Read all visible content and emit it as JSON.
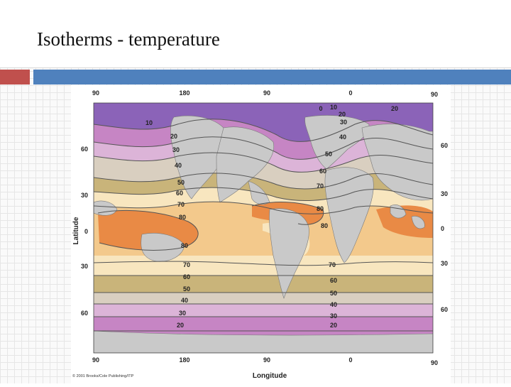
{
  "slide": {
    "title": "Isotherms - temperature"
  },
  "map": {
    "top_ticks": [
      "90",
      "180",
      "90",
      "0",
      "90"
    ],
    "bottom_ticks": [
      "90",
      "180",
      "90",
      "0",
      "90"
    ],
    "left_ticks": [
      "60",
      "30",
      "0",
      "30",
      "60"
    ],
    "right_ticks": [
      "60",
      "30",
      "0",
      "30",
      "60"
    ],
    "x_axis_label": "Longitude",
    "y_axis_label": "Latitude",
    "copyright": "© 2001 Brooks/Cole Publishing/ITP",
    "isotherm_labels": {
      "n10": "10",
      "n20a": "20",
      "n30a": "30",
      "n40a": "40",
      "n50a": "50",
      "n60a": "60",
      "n70a": "70",
      "n80a": "80",
      "eq80a": "80",
      "s70a": "70",
      "s60a": "60",
      "s50a": "50",
      "s40a": "40",
      "s30a": "30",
      "s20a": "20",
      "e0": "0",
      "e10": "10",
      "e20": "20",
      "e30": "30",
      "e40": "40",
      "e50": "50",
      "e60": "60",
      "e70": "70",
      "e80": "80",
      "e80b": "80",
      "s70b": "70",
      "s60b": "60",
      "s50b": "50",
      "s40b": "40",
      "s30b": "30",
      "s20b": "20",
      "nw20": "20"
    },
    "colors": {
      "cold": "#8b63b8",
      "violet": "#c685c4",
      "lavender": "#dcb4d8",
      "olive": "#c9b47a",
      "tan": "#efd7a6",
      "cream": "#f8e6bf",
      "warm": "#f3c98c",
      "hot": "#e98a45",
      "land": "#c9c9c9"
    }
  }
}
